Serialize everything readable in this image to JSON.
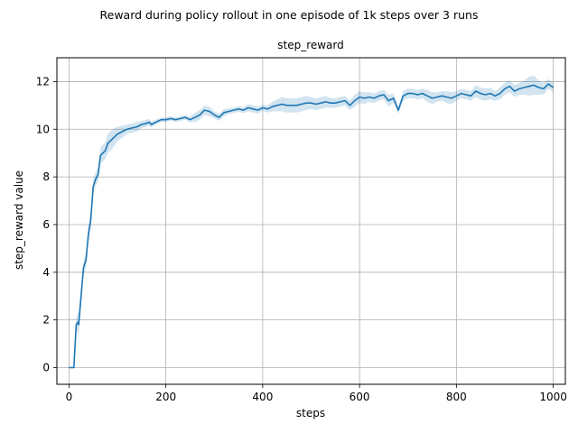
{
  "chart_data": {
    "type": "line",
    "suptitle": "Reward during policy rollout in one episode of 1k steps over 3 runs",
    "title": "step_reward",
    "xlabel": "steps",
    "ylabel": "step_reward value",
    "xlim": [
      -25,
      1025
    ],
    "ylim": [
      -0.7,
      13
    ],
    "xticks": [
      0,
      200,
      400,
      600,
      800,
      1000
    ],
    "yticks": [
      0,
      2,
      4,
      6,
      8,
      10,
      12
    ],
    "grid": true,
    "colors": {
      "line": "#1f77b4",
      "band": "#1f77b4"
    },
    "series": [
      {
        "x": [
          0,
          5,
          10,
          15,
          18,
          20,
          25,
          30,
          35,
          40,
          45,
          50,
          55,
          60,
          65,
          70,
          75,
          80,
          90,
          100,
          110,
          120,
          130,
          140,
          150,
          160,
          165,
          170,
          180,
          190,
          200,
          210,
          220,
          230,
          240,
          250,
          260,
          270,
          280,
          290,
          300,
          310,
          320,
          330,
          340,
          350,
          360,
          370,
          380,
          390,
          400,
          410,
          420,
          430,
          440,
          450,
          460,
          470,
          480,
          490,
          500,
          510,
          520,
          530,
          540,
          550,
          560,
          570,
          580,
          590,
          600,
          610,
          620,
          630,
          640,
          650,
          660,
          670,
          680,
          690,
          700,
          710,
          720,
          730,
          740,
          750,
          760,
          770,
          780,
          790,
          800,
          810,
          820,
          830,
          840,
          850,
          860,
          870,
          880,
          890,
          900,
          910,
          920,
          930,
          940,
          950,
          960,
          970,
          980,
          990,
          1000
        ],
        "values": [
          0,
          0,
          0,
          1.8,
          1.9,
          1.8,
          3.0,
          4.2,
          4.5,
          5.6,
          6.2,
          7.6,
          7.9,
          8.1,
          8.9,
          9.0,
          9.1,
          9.4,
          9.6,
          9.8,
          9.9,
          10.0,
          10.05,
          10.1,
          10.2,
          10.25,
          10.3,
          10.2,
          10.3,
          10.4,
          10.4,
          10.45,
          10.4,
          10.45,
          10.5,
          10.4,
          10.5,
          10.6,
          10.8,
          10.75,
          10.6,
          10.5,
          10.7,
          10.75,
          10.8,
          10.85,
          10.8,
          10.9,
          10.85,
          10.8,
          10.9,
          10.85,
          10.95,
          11.0,
          11.05,
          11.0,
          11.0,
          11.0,
          11.05,
          11.1,
          11.1,
          11.05,
          11.1,
          11.15,
          11.1,
          11.1,
          11.15,
          11.2,
          11.0,
          11.2,
          11.35,
          11.3,
          11.35,
          11.3,
          11.4,
          11.45,
          11.2,
          11.3,
          10.8,
          11.4,
          11.5,
          11.5,
          11.45,
          11.5,
          11.4,
          11.3,
          11.35,
          11.4,
          11.35,
          11.3,
          11.4,
          11.5,
          11.45,
          11.4,
          11.6,
          11.5,
          11.45,
          11.5,
          11.4,
          11.5,
          11.7,
          11.8,
          11.6,
          11.7,
          11.75,
          11.8,
          11.85,
          11.75,
          11.7,
          11.9,
          11.75
        ],
        "band_halfwidth": [
          0,
          0,
          0.05,
          0.3,
          0.4,
          0.5,
          0.35,
          0.3,
          0.3,
          0.35,
          0.35,
          0.3,
          0.3,
          0.3,
          0.35,
          0.35,
          0.35,
          0.4,
          0.4,
          0.3,
          0.25,
          0.2,
          0.2,
          0.2,
          0.15,
          0.15,
          0.15,
          0.12,
          0.1,
          0.1,
          0.1,
          0.1,
          0.1,
          0.1,
          0.1,
          0.12,
          0.2,
          0.2,
          0.2,
          0.2,
          0.15,
          0.15,
          0.15,
          0.12,
          0.12,
          0.12,
          0.12,
          0.15,
          0.15,
          0.15,
          0.12,
          0.15,
          0.2,
          0.25,
          0.3,
          0.3,
          0.3,
          0.3,
          0.3,
          0.3,
          0.25,
          0.25,
          0.25,
          0.25,
          0.2,
          0.2,
          0.2,
          0.2,
          0.2,
          0.25,
          0.25,
          0.25,
          0.2,
          0.2,
          0.2,
          0.2,
          0.25,
          0.2,
          0.15,
          0.2,
          0.2,
          0.2,
          0.2,
          0.2,
          0.25,
          0.25,
          0.2,
          0.2,
          0.25,
          0.25,
          0.2,
          0.2,
          0.2,
          0.2,
          0.25,
          0.25,
          0.25,
          0.25,
          0.2,
          0.25,
          0.25,
          0.25,
          0.25,
          0.25,
          0.3,
          0.4,
          0.4,
          0.3,
          0.25,
          0.2,
          0.2
        ]
      }
    ]
  }
}
